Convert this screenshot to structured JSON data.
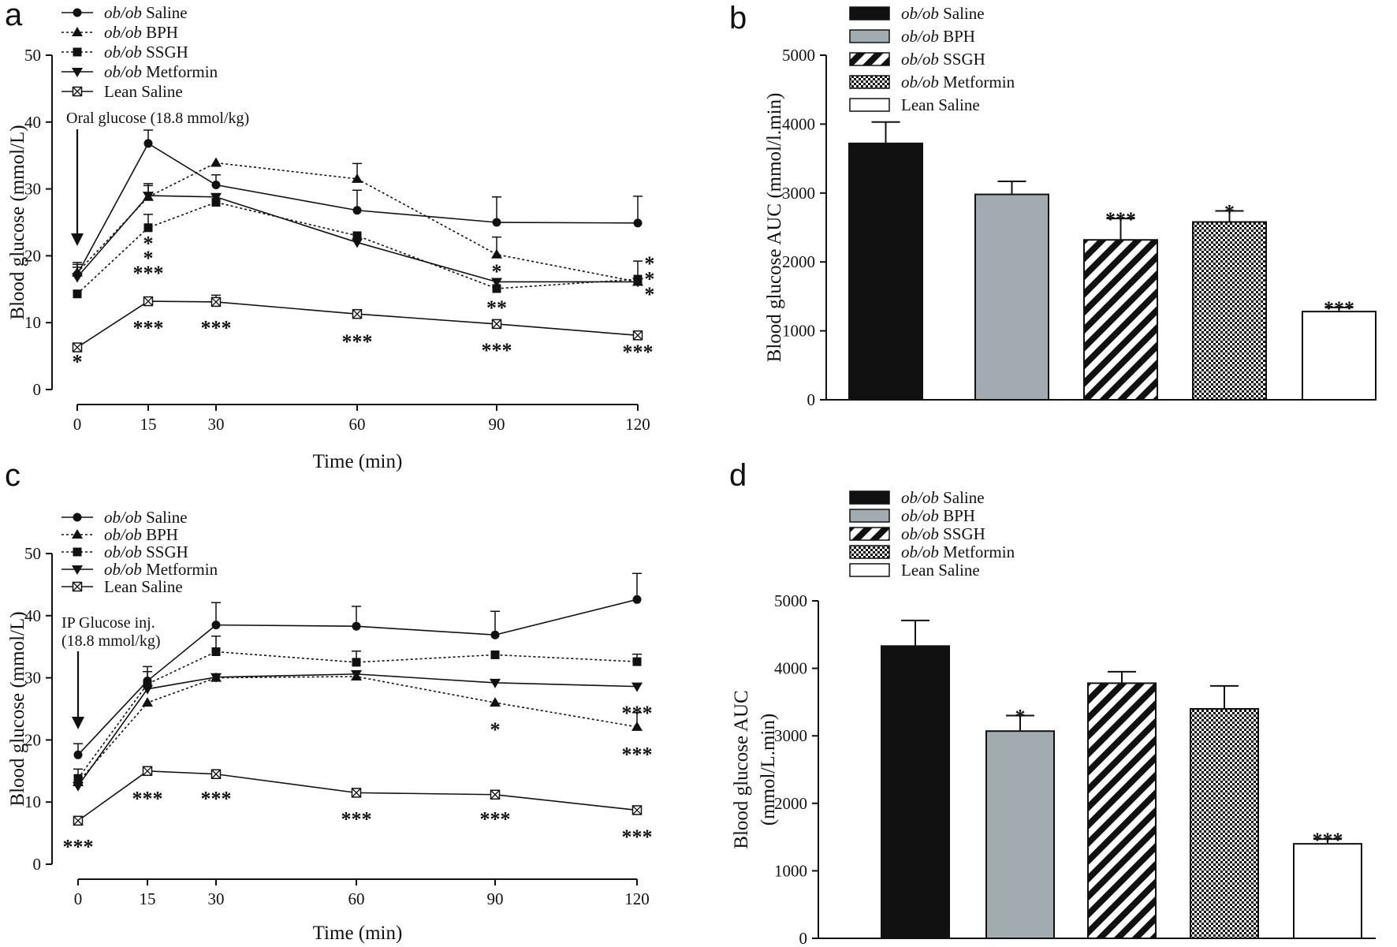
{
  "colors": {
    "ink": "#111111",
    "bpq_bar": "#a1abb0",
    "white": "#ffffff"
  },
  "chart_data": [
    {
      "panel": "a",
      "type": "line",
      "xlabel": "Time (min)",
      "ylabel": "Blood glucose (mmol/L)",
      "x": [
        0,
        15,
        30,
        60,
        90,
        120
      ],
      "xticks": [
        "0",
        "15",
        "30",
        "60",
        "90",
        "120"
      ],
      "ylim": [
        0,
        50
      ],
      "yticks": [
        "0",
        "10",
        "20",
        "30",
        "40",
        "50"
      ],
      "annotation": "Oral glucose (18.8 mmol/kg)",
      "series": [
        {
          "name_prefix": "ob/ob",
          "name_rest": " Saline",
          "marker": "circle",
          "dash": "solid",
          "values": [
            17.2,
            36.8,
            30.6,
            26.8,
            25.0,
            24.9
          ],
          "err": [
            1.5,
            2.0,
            1.5,
            3.0,
            3.8,
            4.0
          ]
        },
        {
          "name_prefix": "ob/ob",
          "name_rest": " BPH",
          "marker": "triangle",
          "dash": "dotted",
          "values": [
            17.5,
            28.8,
            33.9,
            31.5,
            20.2,
            16.1
          ],
          "err": [
            1.5,
            2.0,
            0,
            2.3,
            2.6,
            0
          ]
        },
        {
          "name_prefix": "ob/ob",
          "name_rest": " SSGH",
          "marker": "square",
          "dash": "dotted",
          "values": [
            14.3,
            24.2,
            28.0,
            23.0,
            15.1,
            16.5
          ],
          "err": [
            0,
            2.0,
            1.2,
            0,
            0,
            2.7
          ]
        },
        {
          "name_prefix": "ob/ob",
          "name_rest": " Metformin",
          "marker": "triangle-down",
          "dash": "solid",
          "values": [
            16.8,
            29.0,
            28.8,
            22.0,
            16.1,
            16.1
          ],
          "err": [
            1.5,
            1.5,
            0,
            0,
            0,
            0
          ]
        },
        {
          "name_prefix": "",
          "name_rest": "Lean Saline",
          "marker": "crossbox",
          "dash": "solid",
          "values": [
            6.3,
            13.2,
            13.1,
            11.3,
            9.8,
            8.1
          ],
          "err": [
            0,
            0,
            1.0,
            0,
            0,
            0
          ]
        }
      ],
      "sig": [
        {
          "x": 0,
          "y": 4.3,
          "text": "*"
        },
        {
          "x": 15,
          "y": 22.0,
          "text": "*"
        },
        {
          "x": 15,
          "y": 19.8,
          "text": "*"
        },
        {
          "x": 15,
          "y": 17.6,
          "text": "***"
        },
        {
          "x": 15,
          "y": 9.4,
          "text": "***"
        },
        {
          "x": 30,
          "y": 9.4,
          "text": "***"
        },
        {
          "x": 60,
          "y": 7.3,
          "text": "***"
        },
        {
          "x": 90,
          "y": 17.8,
          "text": "*"
        },
        {
          "x": 90,
          "y": 12.4,
          "text": "**"
        },
        {
          "x": 90,
          "y": 6.0,
          "text": "***"
        },
        {
          "x": 122.5,
          "y": 19.0,
          "text": "*"
        },
        {
          "x": 122.5,
          "y": 16.7,
          "text": "*"
        },
        {
          "x": 122.5,
          "y": 14.4,
          "text": "*"
        },
        {
          "x": 120,
          "y": 5.8,
          "text": "***"
        }
      ]
    },
    {
      "panel": "b",
      "type": "bar",
      "ylabel_lines": [
        "Blood glucose AUC (mmol/l.min)"
      ],
      "ylim": [
        0,
        5000
      ],
      "yticks": [
        "0",
        "1000",
        "2000",
        "3000",
        "4000",
        "5000"
      ],
      "categories": [
        {
          "name_prefix": "ob/ob",
          "name_rest": " Saline",
          "fill": "black"
        },
        {
          "name_prefix": "ob/ob",
          "name_rest": " BPH",
          "fill": "gray"
        },
        {
          "name_prefix": "ob/ob",
          "name_rest": " SSGH",
          "fill": "stripe"
        },
        {
          "name_prefix": "ob/ob",
          "name_rest": " Metformin",
          "fill": "check"
        },
        {
          "name_prefix": "",
          "name_rest": "Lean  Saline",
          "fill": "white"
        }
      ],
      "values": [
        3720,
        2980,
        2320,
        2580,
        1280
      ],
      "err": [
        310,
        190,
        310,
        160,
        60
      ],
      "sig": [
        "",
        "",
        "***",
        "*",
        "***"
      ]
    },
    {
      "panel": "c",
      "type": "line",
      "xlabel": "Time (min)",
      "ylabel": "Blood glucose (mmol/L)",
      "x": [
        0,
        15,
        30,
        60,
        90,
        120
      ],
      "xticks": [
        "0",
        "15",
        "30",
        "60",
        "90",
        "120"
      ],
      "ylim": [
        0,
        50
      ],
      "yticks": [
        "0",
        "10",
        "20",
        "30",
        "40",
        "50"
      ],
      "annotation_lines": [
        "IP Glucose inj.",
        "(18.8 mmol/kg)"
      ],
      "series": [
        {
          "name_prefix": "ob/ob",
          "name_rest": " Saline",
          "marker": "circle",
          "dash": "solid",
          "values": [
            17.6,
            29.5,
            38.5,
            38.3,
            36.9,
            42.6
          ],
          "err": [
            1.8,
            2.3,
            3.6,
            3.2,
            3.8,
            4.2
          ]
        },
        {
          "name_prefix": "ob/ob",
          "name_rest": " BPH",
          "marker": "triangle",
          "dash": "dotted",
          "values": [
            13.2,
            26.0,
            30.0,
            30.2,
            26.0,
            22.1
          ],
          "err": [
            0,
            0,
            0,
            0,
            0,
            2.3
          ]
        },
        {
          "name_prefix": "ob/ob",
          "name_rest": " SSGH",
          "marker": "square",
          "dash": "dotted",
          "values": [
            13.8,
            29.0,
            34.2,
            32.5,
            33.7,
            32.6
          ],
          "err": [
            1.5,
            2.0,
            2.5,
            1.8,
            0,
            1.2
          ]
        },
        {
          "name_prefix": "ob/ob",
          "name_rest": " Metformin",
          "marker": "triangle-down",
          "dash": "solid",
          "values": [
            12.6,
            28.2,
            30.1,
            30.6,
            29.2,
            28.6
          ],
          "err": [
            0,
            0,
            0,
            0,
            0,
            0
          ]
        },
        {
          "name_prefix": "",
          "name_rest": "Lean  Saline",
          "marker": "crossbox",
          "dash": "solid",
          "values": [
            7.0,
            15.0,
            14.5,
            11.5,
            11.2,
            8.7
          ],
          "err": [
            0,
            0,
            0,
            0,
            0,
            0
          ]
        }
      ],
      "sig": [
        {
          "x": 0,
          "y": 3.0,
          "text": "***"
        },
        {
          "x": 15,
          "y": 10.7,
          "text": "***"
        },
        {
          "x": 30,
          "y": 10.7,
          "text": "***"
        },
        {
          "x": 60,
          "y": 7.4,
          "text": "***"
        },
        {
          "x": 90,
          "y": 21.8,
          "text": "*"
        },
        {
          "x": 90,
          "y": 7.4,
          "text": "***"
        },
        {
          "x": 120,
          "y": 24.5,
          "text": "***"
        },
        {
          "x": 120,
          "y": 17.8,
          "text": "***"
        },
        {
          "x": 120,
          "y": 4.6,
          "text": "***"
        }
      ]
    },
    {
      "panel": "d",
      "type": "bar",
      "ylabel_lines": [
        "Blood glucose AUC",
        "(mmol/L.min)"
      ],
      "ylim": [
        0,
        5000
      ],
      "yticks": [
        "0",
        "1000",
        "2000",
        "3000",
        "4000",
        "5000"
      ],
      "categories": [
        {
          "name_prefix": "ob/ob",
          "name_rest": " Saline",
          "fill": "black"
        },
        {
          "name_prefix": "ob/ob",
          "name_rest": " BPH",
          "fill": "gray"
        },
        {
          "name_prefix": "ob/ob",
          "name_rest": " SSGH",
          "fill": "stripe"
        },
        {
          "name_prefix": "ob/ob",
          "name_rest": " Metformin",
          "fill": "check"
        },
        {
          "name_prefix": "",
          "name_rest": "Lean Saline",
          "fill": "white"
        }
      ],
      "values": [
        4330,
        3070,
        3780,
        3400,
        1400
      ],
      "err": [
        380,
        230,
        170,
        340,
        70
      ],
      "sig": [
        "",
        "*",
        "",
        "",
        "***"
      ]
    }
  ]
}
